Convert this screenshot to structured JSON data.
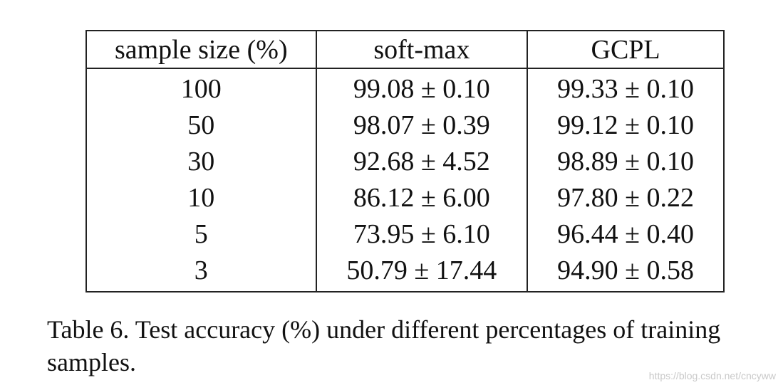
{
  "table": {
    "headers": [
      "sample size (%)",
      "soft-max",
      "GCPL"
    ],
    "rows": [
      [
        "100",
        "99.08 ± 0.10",
        "99.33 ± 0.10"
      ],
      [
        "50",
        "98.07 ± 0.39",
        "99.12 ± 0.10"
      ],
      [
        "30",
        "92.68 ± 4.52",
        "98.89 ± 0.10"
      ],
      [
        "10",
        "86.12 ± 6.00",
        "97.80 ± 0.22"
      ],
      [
        "5",
        "73.95 ± 6.10",
        "96.44 ± 0.40"
      ],
      [
        "3",
        "50.79 ± 17.44",
        "94.90 ± 0.58"
      ]
    ]
  },
  "caption": "Table 6. Test accuracy (%) under different percentages of training samples.",
  "watermark": "https://blog.csdn.net/cncyww"
}
